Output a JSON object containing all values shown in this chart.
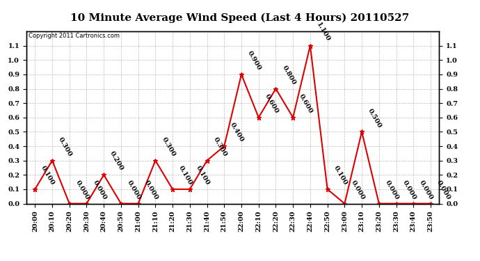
{
  "title": "10 Minute Average Wind Speed (Last 4 Hours) 20110527",
  "copyright_text": "Copyright 2011 Cartronics.com",
  "x_labels": [
    "20:00",
    "20:10",
    "20:20",
    "20:30",
    "20:40",
    "20:50",
    "21:00",
    "21:10",
    "21:20",
    "21:30",
    "21:40",
    "21:50",
    "22:00",
    "22:10",
    "22:20",
    "22:30",
    "22:40",
    "22:50",
    "23:00",
    "23:10",
    "23:20",
    "23:30",
    "23:40",
    "23:50"
  ],
  "y_values": [
    0.1,
    0.3,
    0.0,
    0.0,
    0.2,
    0.0,
    0.0,
    0.3,
    0.1,
    0.1,
    0.3,
    0.4,
    0.9,
    0.6,
    0.8,
    0.6,
    1.1,
    0.1,
    0.0,
    0.5,
    0.0,
    0.0,
    0.0,
    0.0
  ],
  "line_color": "#dd0000",
  "marker_color": "#dd0000",
  "marker": "*",
  "ylim": [
    0.0,
    1.2
  ],
  "yticks_left": [
    0.0,
    0.1,
    0.2,
    0.3,
    0.4,
    0.5,
    0.6,
    0.7,
    0.8,
    0.9,
    1.0,
    1.1
  ],
  "yticks_right": [
    0.0,
    0.1,
    0.2,
    0.3,
    0.4,
    0.5,
    0.6,
    0.7,
    0.8,
    0.9,
    1.0,
    1.1
  ],
  "grid_color": "#bbbbbb",
  "bg_color": "#ffffff",
  "title_fontsize": 11,
  "label_fontsize": 7,
  "annotation_fontsize": 7,
  "annotation_rotation": -60,
  "border_color": "#000000",
  "fig_width": 6.9,
  "fig_height": 3.75,
  "dpi": 100
}
